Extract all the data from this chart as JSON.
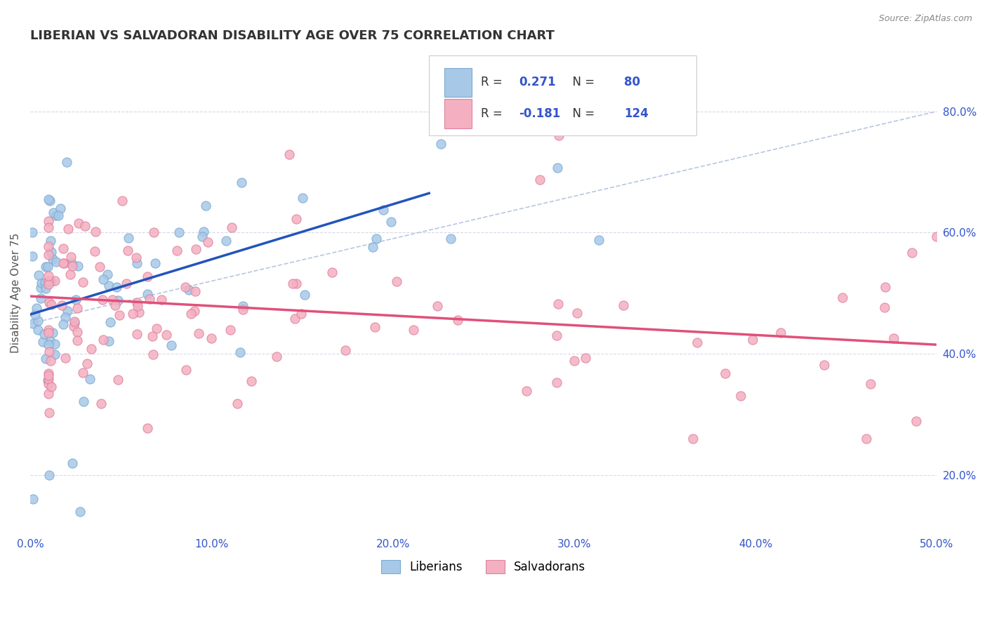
{
  "title": "LIBERIAN VS SALVADORAN DISABILITY AGE OVER 75 CORRELATION CHART",
  "source": "Source: ZipAtlas.com",
  "ylabel": "Disability Age Over 75",
  "xlim": [
    0.0,
    0.5
  ],
  "ylim": [
    0.1,
    0.9
  ],
  "xtick_labels": [
    "0.0%",
    "10.0%",
    "20.0%",
    "30.0%",
    "40.0%",
    "50.0%"
  ],
  "xtick_vals": [
    0.0,
    0.1,
    0.2,
    0.3,
    0.4,
    0.5
  ],
  "ytick_labels": [
    "20.0%",
    "40.0%",
    "60.0%",
    "80.0%"
  ],
  "ytick_vals": [
    0.2,
    0.4,
    0.6,
    0.8
  ],
  "liberian_dot_color": "#a8c8e8",
  "liberian_dot_edge": "#7aaad0",
  "salvadoran_dot_color": "#f4b0c0",
  "salvadoran_dot_edge": "#e080a0",
  "liberian_line_color": "#2255bb",
  "salvadoran_line_color": "#e0507a",
  "diag_color": "#b0c0e0",
  "legend_liberian": "Liberians",
  "legend_salvadoran": "Salvadorans",
  "R_lib": 0.271,
  "N_lib": 80,
  "R_sal": -0.181,
  "N_sal": 124,
  "stats_blue": "#3355cc",
  "title_fontsize": 13,
  "axis_label_fontsize": 11,
  "tick_fontsize": 11,
  "background_color": "#ffffff",
  "grid_color": "#d8d8e8",
  "lib_trend_x0": 0.0,
  "lib_trend_x1": 0.22,
  "lib_trend_y0": 0.465,
  "lib_trend_y1": 0.665,
  "sal_trend_x0": 0.0,
  "sal_trend_x1": 0.5,
  "sal_trend_y0": 0.495,
  "sal_trend_y1": 0.415
}
